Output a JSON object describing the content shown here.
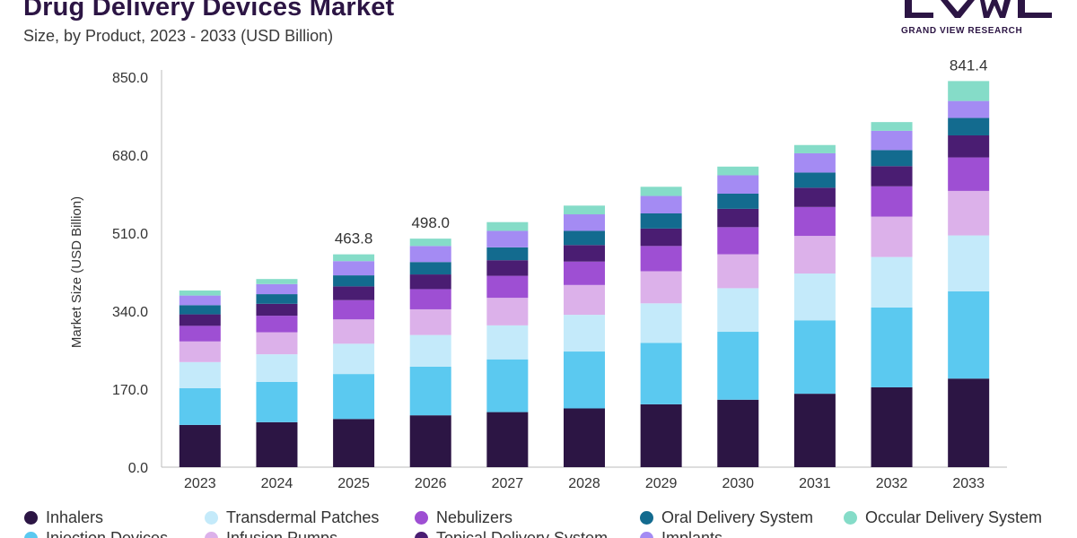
{
  "header": {
    "title": "Drug Delivery Devices Market",
    "subtitle": "Size, by Product, 2023 - 2033 (USD Billion)"
  },
  "logo": {
    "text": "GRAND VIEW RESEARCH",
    "color": "#2c1544"
  },
  "chart_data": {
    "type": "bar",
    "stacked": true,
    "title": "Drug Delivery Devices Market",
    "subtitle": "Size, by Product, 2023 - 2033 (USD Billion)",
    "xlabel": "",
    "ylabel": "Market Size (USD Billion)",
    "ylim": [
      0,
      850
    ],
    "yticks": [
      "0.0",
      "170.0",
      "340.0",
      "510.0",
      "680.0",
      "850.0"
    ],
    "categories": [
      "2023",
      "2024",
      "2025",
      "2026",
      "2027",
      "2028",
      "2029",
      "2030",
      "2031",
      "2032",
      "2033"
    ],
    "totals": [
      385,
      410,
      463.8,
      498.0,
      534,
      570,
      611,
      655,
      702,
      752,
      841.4
    ],
    "data_labels": [
      "",
      "",
      "463.8",
      "498.0",
      "",
      "",
      "",
      "",
      "",
      "",
      "841.4"
    ],
    "grid": false,
    "legend_position": "bottom",
    "series": [
      {
        "name": "Inhalers",
        "color": "#2c1544",
        "values": [
          92,
          98,
          105,
          113,
          120,
          128,
          137,
          147,
          160,
          174,
          193
        ]
      },
      {
        "name": "Injection Devices",
        "color": "#5bc9f0",
        "values": [
          80,
          88,
          98,
          106,
          115,
          124,
          134,
          148,
          160,
          174,
          190
        ]
      },
      {
        "name": "Transdermal Patches",
        "color": "#c4eafa",
        "values": [
          57,
          60,
          66,
          69,
          74,
          80,
          86,
          95,
          102,
          110,
          122
        ]
      },
      {
        "name": "Infusion Pumps",
        "color": "#dcb1ea",
        "values": [
          45,
          48,
          53,
          56,
          60,
          65,
          70,
          74,
          82,
          88,
          97
        ]
      },
      {
        "name": "Nebulizers",
        "color": "#9e4fd3",
        "values": [
          34,
          36,
          42,
          44,
          48,
          51,
          55,
          59,
          63,
          66,
          73
        ]
      },
      {
        "name": "Topical Delivery System",
        "color": "#4a1d72",
        "values": [
          25,
          26,
          30,
          32,
          34,
          36,
          38,
          40,
          42,
          44,
          48
        ]
      },
      {
        "name": "Oral Delivery System",
        "color": "#136b8f",
        "values": [
          20,
          21,
          24,
          27,
          28,
          31,
          33,
          33,
          33,
          35,
          38
        ]
      },
      {
        "name": "Implants",
        "color": "#a48bf3",
        "values": [
          21,
          22,
          31,
          35,
          36,
          36,
          38,
          40,
          42,
          42,
          37
        ]
      },
      {
        "name": "Occular Delivery System",
        "color": "#85dcc8",
        "values": [
          11,
          11,
          14.8,
          16,
          19,
          19,
          20,
          19,
          18,
          19,
          43.4
        ]
      }
    ]
  }
}
